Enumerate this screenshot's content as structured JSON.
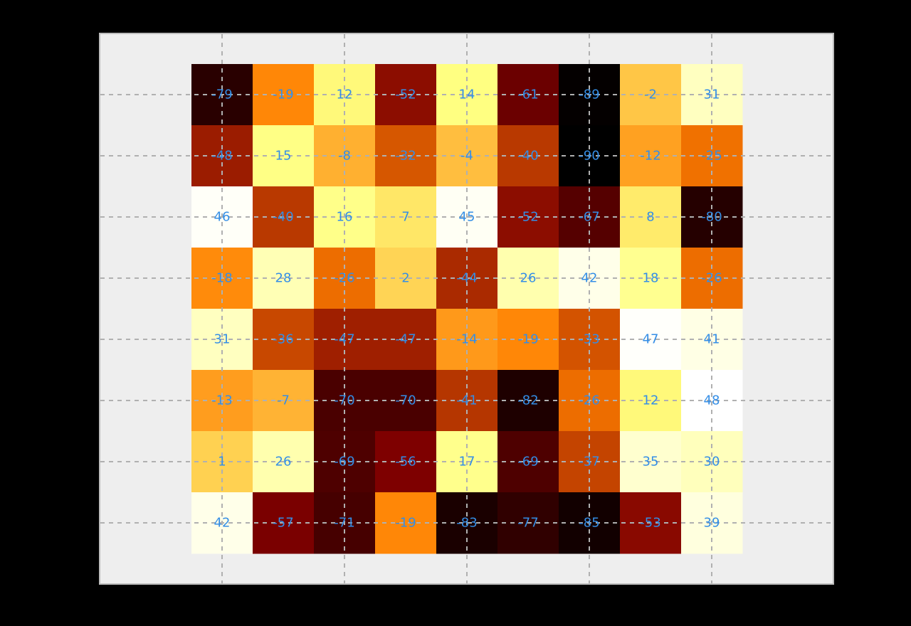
{
  "chart_data": {
    "type": "heatmap",
    "title": "",
    "xlabel": "",
    "ylabel": "",
    "colormap": "afmhot",
    "value_range": [
      -90,
      48
    ],
    "grid": true,
    "rows": [
      [
        -79,
        -19,
        12,
        -52,
        14,
        -61,
        -89,
        -2,
        31
      ],
      [
        -48,
        15,
        -8,
        -32,
        -4,
        -40,
        -90,
        -12,
        -25
      ],
      [
        46,
        -40,
        16,
        7,
        45,
        -52,
        -67,
        8,
        -80
      ],
      [
        -18,
        28,
        -26,
        2,
        -44,
        26,
        42,
        18,
        -26
      ],
      [
        31,
        -36,
        -47,
        -47,
        -14,
        -19,
        -33,
        47,
        41
      ],
      [
        -13,
        -7,
        -70,
        -70,
        -41,
        -82,
        -26,
        12,
        48
      ],
      [
        1,
        26,
        -69,
        -56,
        17,
        -69,
        -37,
        35,
        30
      ],
      [
        42,
        -57,
        -71,
        -19,
        -83,
        -77,
        -85,
        -53,
        39
      ]
    ],
    "colors": {
      "figure_background": "#000000",
      "axes_background": "#eeeeee",
      "axes_border": "#bcbcbc",
      "grid": "#b0b0b0",
      "cell_label": "#348ee6"
    }
  }
}
